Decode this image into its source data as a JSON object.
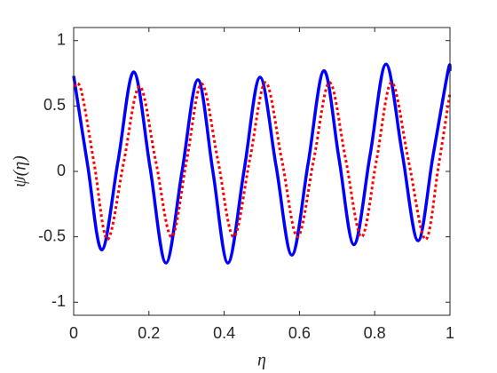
{
  "chart_data": {
    "type": "line",
    "x_label": "η",
    "y_label": "ψ(η)",
    "xlim": [
      0,
      1
    ],
    "ylim": [
      -1.1,
      1.1
    ],
    "xticks": [
      0,
      0.2,
      0.4,
      0.6,
      0.8,
      1
    ],
    "yticks": [
      -1,
      -0.5,
      0,
      0.5,
      1
    ],
    "series": [
      {
        "color": "#0000ff",
        "style": "solid",
        "x": [
          0,
          0.037,
          0.075,
          0.118,
          0.16,
          0.203,
          0.245,
          0.288,
          0.33,
          0.37,
          0.41,
          0.453,
          0.495,
          0.538,
          0.58,
          0.623,
          0.665,
          0.705,
          0.745,
          0.788,
          0.83,
          0.873,
          0.915,
          0.955,
          0.995,
          1
        ],
        "values": [
          0.73,
          0.05,
          -0.6,
          0.08,
          0.76,
          0.03,
          -0.7,
          0.0,
          0.7,
          0.0,
          -0.7,
          0.01,
          0.72,
          0.04,
          -0.64,
          0.06,
          0.77,
          0.1,
          -0.56,
          0.13,
          0.82,
          0.14,
          -0.53,
          0.12,
          0.77,
          0.76
        ]
      },
      {
        "color": "#ff0000",
        "style": "dotted",
        "x": [
          0,
          0.02,
          0.055,
          0.09,
          0.133,
          0.175,
          0.218,
          0.26,
          0.3,
          0.34,
          0.383,
          0.425,
          0.468,
          0.51,
          0.553,
          0.595,
          0.638,
          0.68,
          0.723,
          0.765,
          0.805,
          0.845,
          0.89,
          0.935,
          0.97,
          1
        ],
        "values": [
          0.65,
          0.62,
          0.05,
          -0.52,
          0.07,
          0.65,
          0.08,
          -0.5,
          0.08,
          0.67,
          0.09,
          -0.5,
          0.09,
          0.68,
          0.09,
          -0.5,
          0.09,
          0.68,
          0.09,
          -0.5,
          0.09,
          0.68,
          0.08,
          -0.52,
          0.05,
          0.6
        ]
      }
    ]
  }
}
